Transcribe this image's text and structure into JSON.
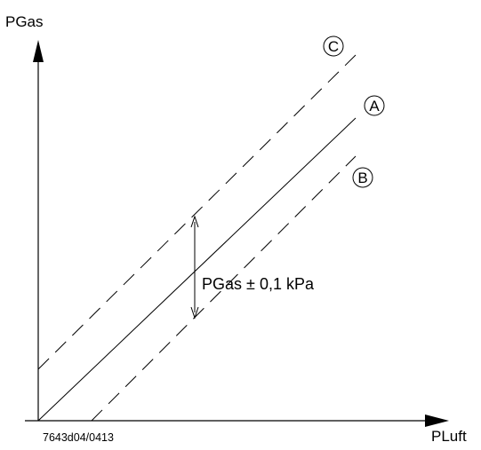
{
  "axes": {
    "y_label": "PGas",
    "x_label": "PLuft"
  },
  "lines": [
    {
      "id": "A",
      "label": "A",
      "style": "solid"
    },
    {
      "id": "B",
      "label": "B",
      "style": "dashed"
    },
    {
      "id": "C",
      "label": "C",
      "style": "dashed"
    }
  ],
  "tolerance": {
    "prefix": "PGas",
    "symbol": "±",
    "value": "0,1 kPa"
  },
  "figure_code": "7643d04/0413"
}
